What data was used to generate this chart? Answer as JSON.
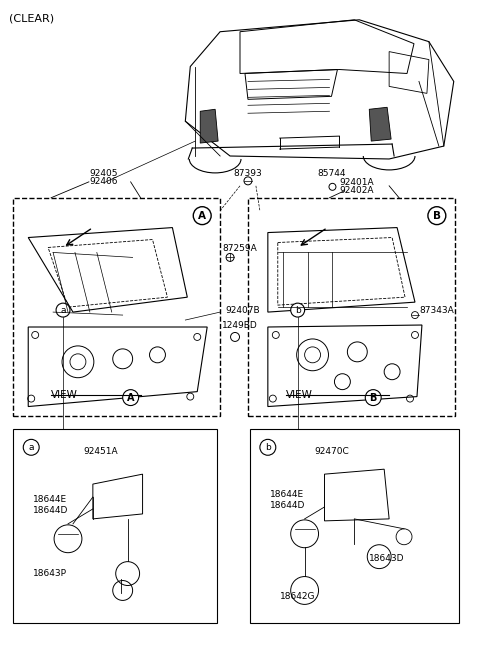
{
  "title": "(CLEAR)",
  "bg_color": "#ffffff",
  "line_color": "#000000",
  "fig_width": 4.8,
  "fig_height": 6.56,
  "dpi": 100,
  "part_labels_top_left": [
    "92405",
    "92406"
  ],
  "part_label_87393": "87393",
  "part_label_85744": "85744",
  "part_labels_top_right": [
    "92401A",
    "92402A"
  ],
  "part_label_87259A": "87259A",
  "part_label_92407B": "92407B",
  "part_label_1249BD": "1249BD",
  "part_label_87343A": "87343A",
  "box_a_labels": [
    "a",
    "92451A",
    "18644E",
    "18644D",
    "18643P"
  ],
  "box_b_labels": [
    "b",
    "92470C",
    "18644E",
    "18644D",
    "18643D",
    "18642G"
  ]
}
